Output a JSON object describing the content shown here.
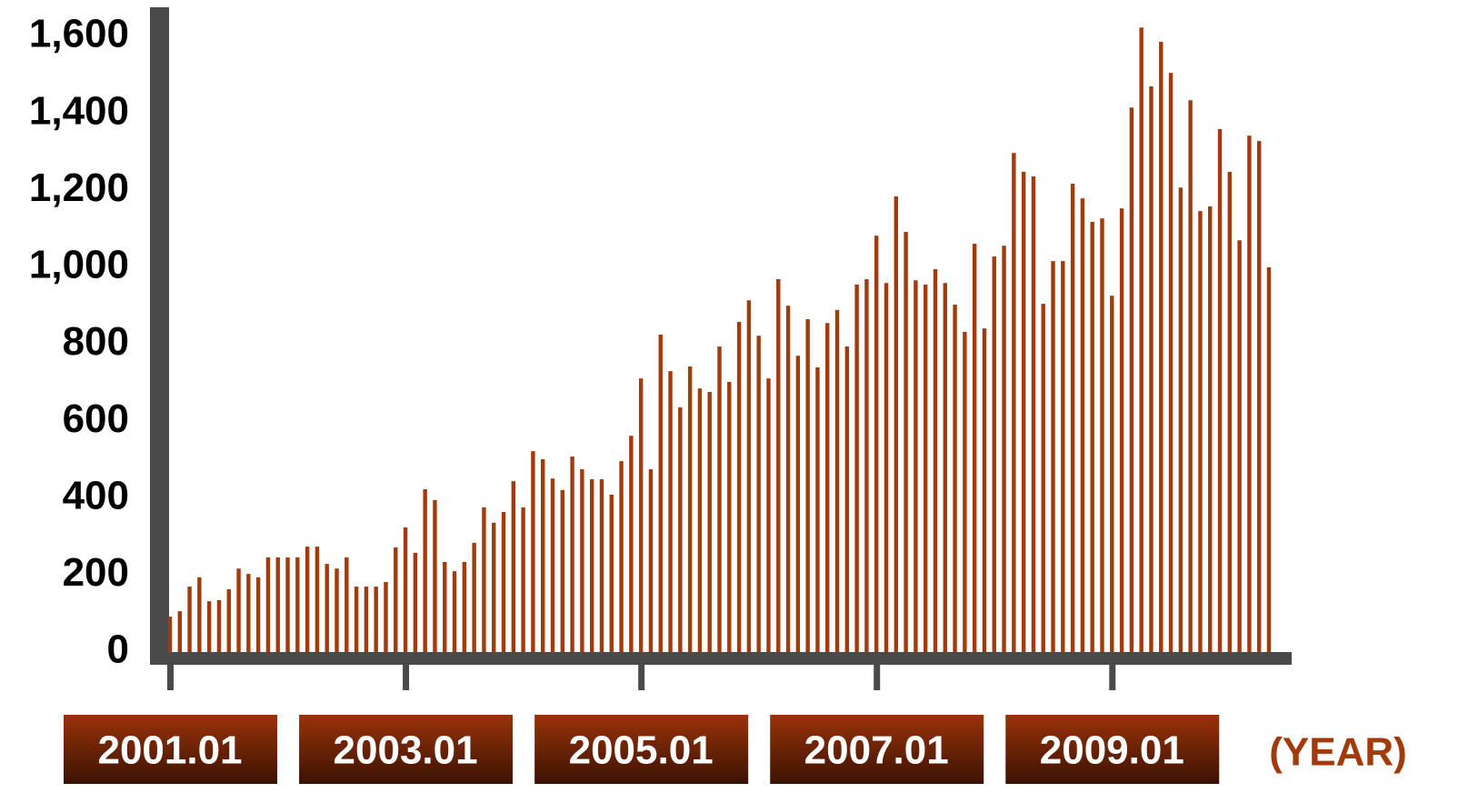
{
  "chart_data": {
    "type": "bar",
    "x_label": "(YEAR)",
    "categories": [
      "2001.01",
      null,
      null,
      null,
      null,
      null,
      null,
      null,
      null,
      null,
      null,
      null,
      null,
      null,
      null,
      null,
      null,
      null,
      null,
      null,
      null,
      null,
      null,
      null,
      "2003.01",
      null,
      null,
      null,
      null,
      null,
      null,
      null,
      null,
      null,
      null,
      null,
      null,
      null,
      null,
      null,
      null,
      null,
      null,
      null,
      null,
      null,
      null,
      null,
      "2005.01",
      null,
      null,
      null,
      null,
      null,
      null,
      null,
      null,
      null,
      null,
      null,
      null,
      null,
      null,
      null,
      null,
      null,
      null,
      null,
      null,
      null,
      null,
      null,
      "2007.01",
      null,
      null,
      null,
      null,
      null,
      null,
      null,
      null,
      null,
      null,
      null,
      null,
      null,
      null,
      null,
      null,
      null,
      null,
      null,
      null,
      null,
      null,
      null,
      "2009.01",
      null,
      null,
      null,
      null,
      null,
      null,
      null,
      null,
      null,
      null,
      null,
      null,
      null,
      null,
      null,
      null
    ],
    "values": [
      92,
      106,
      170,
      194,
      132,
      135,
      163,
      217,
      203,
      194,
      246,
      246,
      246,
      246,
      274,
      274,
      229,
      217,
      246,
      170,
      170,
      170,
      182,
      272,
      324,
      258,
      423,
      395,
      234,
      210,
      234,
      284,
      376,
      336,
      364,
      444,
      376,
      522,
      501,
      451,
      421,
      508,
      475,
      449,
      449,
      409,
      496,
      562,
      711,
      475,
      825,
      730,
      636,
      742,
      685,
      676,
      794,
      702,
      858,
      914,
      822,
      711,
      969,
      900,
      770,
      865,
      740,
      855,
      889,
      794,
      955,
      969,
      1082,
      959,
      1184,
      1092,
      966,
      955,
      995,
      959,
      903,
      832,
      1061,
      841,
      1028,
      1056,
      1297,
      1248,
      1236,
      905,
      1016,
      1016,
      1217,
      1179,
      1118,
      1127,
      926,
      1153,
      1415,
      1623,
      1470,
      1586,
      1505,
      1207,
      1434,
      1146,
      1158,
      1359,
      1248,
      1070,
      1342,
      1328,
      1000
    ],
    "color": "#a33a0c",
    "ylim": [
      0,
      1670
    ],
    "yticks": [
      0,
      200,
      400,
      600,
      800,
      {
        "value": 1000,
        "label": "1,000"
      },
      {
        "value": 1200,
        "label": "1,200"
      },
      {
        "value": 1400,
        "label": "1,400"
      },
      {
        "value": 1600,
        "label": "1,600"
      }
    ]
  }
}
